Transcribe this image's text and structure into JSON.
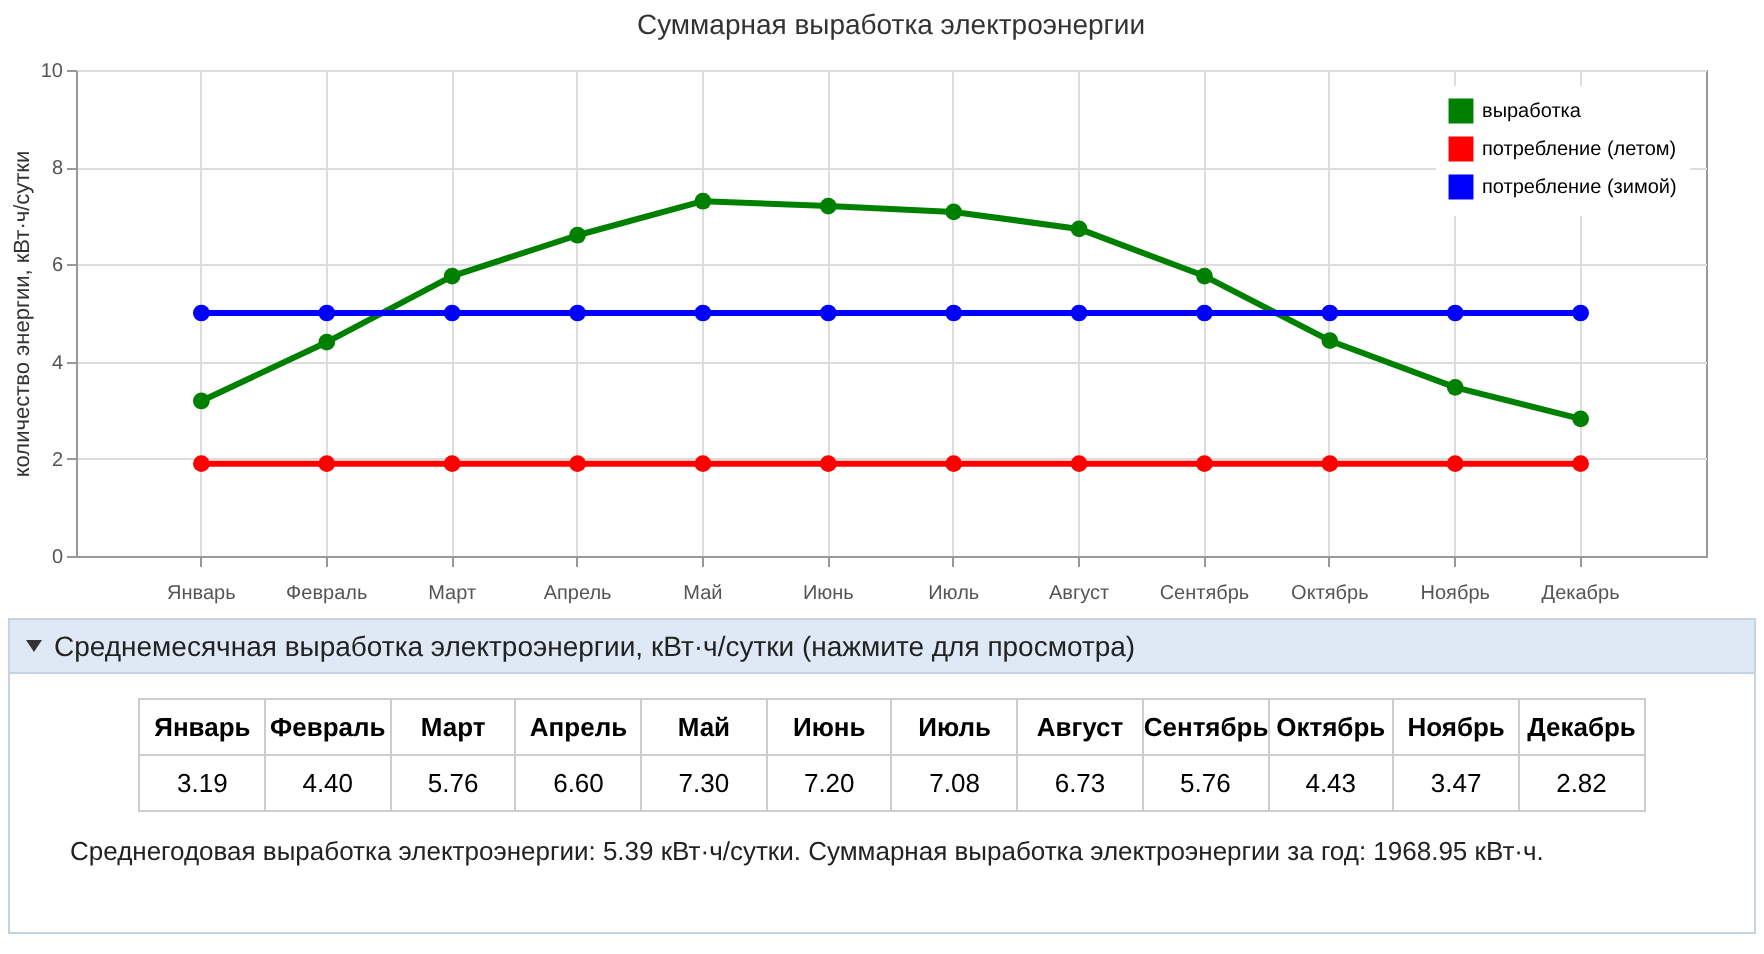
{
  "chart_data": {
    "type": "line",
    "title": "Суммарная выработка электроэнергии",
    "ylabel": "количество энергии, кВт·ч/сутки",
    "categories": [
      "Январь",
      "Февраль",
      "Март",
      "Апрель",
      "Май",
      "Июнь",
      "Июль",
      "Август",
      "Сентябрь",
      "Октябрь",
      "Ноябрь",
      "Декабрь"
    ],
    "series": [
      {
        "name": "выработка",
        "color": "#008000",
        "values": [
          3.19,
          4.4,
          5.76,
          6.6,
          7.3,
          7.2,
          7.08,
          6.73,
          5.76,
          4.43,
          3.47,
          2.82
        ],
        "value_labels": [
          "3.19",
          "4.40",
          "5.76",
          "6.60",
          "7.30",
          "7.20",
          "7.08",
          "6.73",
          "5.76",
          "4.43",
          "3.47",
          "2.82"
        ]
      },
      {
        "name": "потребление (летом)",
        "color": "#ff0000",
        "values": [
          1.9,
          1.9,
          1.9,
          1.9,
          1.9,
          1.9,
          1.9,
          1.9,
          1.9,
          1.9,
          1.9,
          1.9
        ]
      },
      {
        "name": "потребление (зимой)",
        "color": "#0000ff",
        "values": [
          5,
          5,
          5,
          5,
          5,
          5,
          5,
          5,
          5,
          5,
          5,
          5
        ]
      }
    ],
    "ylim": [
      0,
      10
    ],
    "yticks": [
      0,
      2,
      4,
      6,
      8,
      10
    ],
    "grid": true,
    "legend": "top right",
    "marker": "circle",
    "line_style": "solid",
    "annotations": [
      "Среднемесячная выработка электроэнергии, кВт·ч/сутки (нажмите для просмотра)",
      "Среднегодовая выработка электроэнергии: 5.39 кВт·ч/сутки. Суммарная выработка электроэнергии за год: 1968.95 кВт·ч."
    ]
  }
}
